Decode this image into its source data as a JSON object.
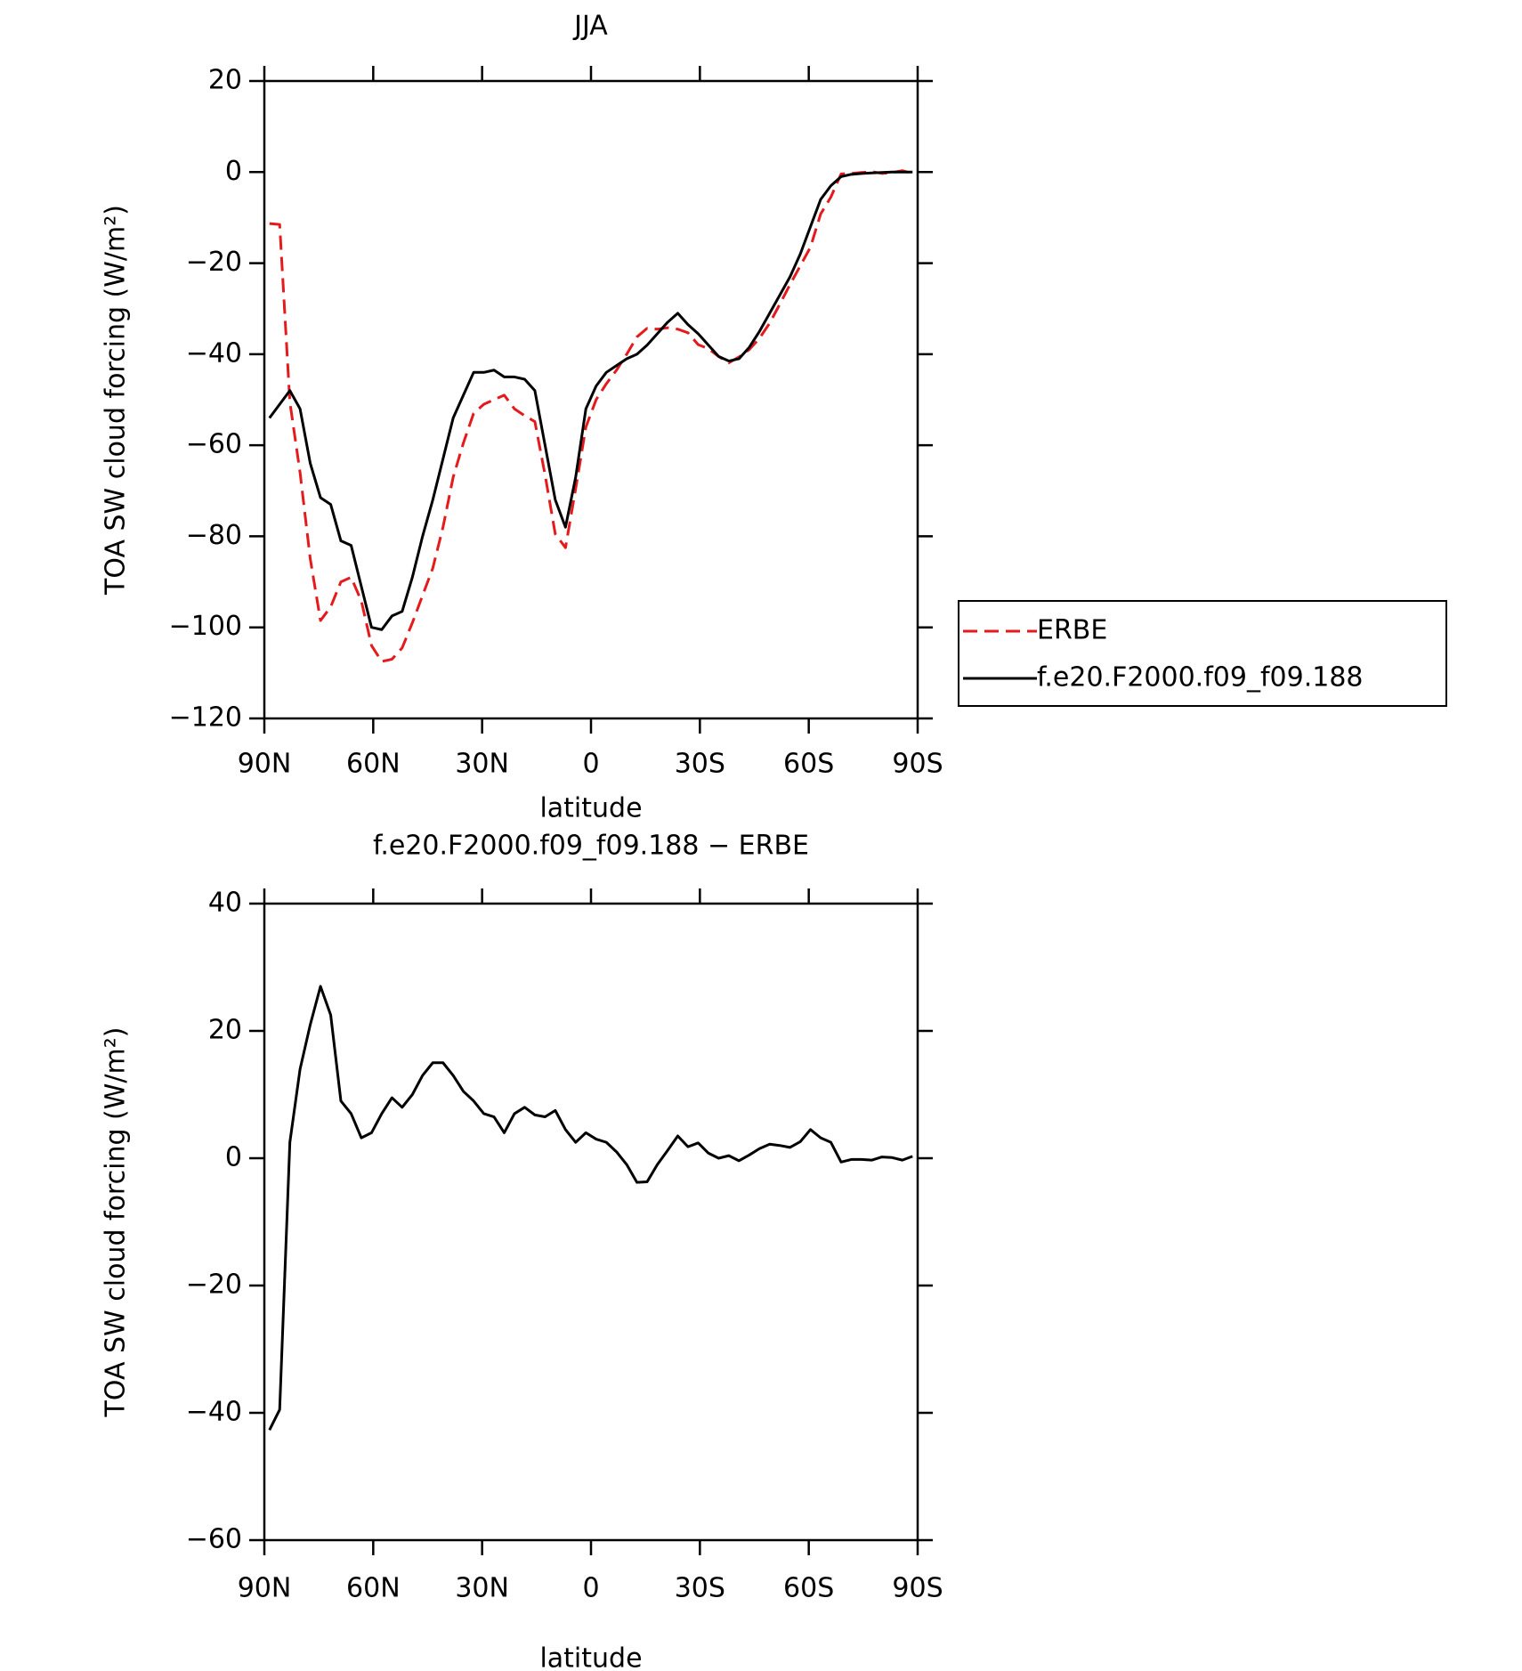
{
  "chart_data": [
    {
      "type": "line",
      "title": "JJA",
      "xlabel": "latitude",
      "ylabel": "TOA SW cloud forcing (W/m²)",
      "x": [
        88.59,
        85.78,
        82.97,
        80.16,
        77.34,
        74.53,
        71.72,
        68.91,
        66.09,
        63.28,
        60.47,
        57.66,
        54.84,
        52.03,
        49.22,
        46.41,
        43.59,
        40.78,
        37.97,
        35.16,
        32.34,
        29.53,
        26.72,
        23.91,
        21.09,
        18.28,
        15.47,
        12.66,
        9.84,
        7.03,
        4.22,
        1.41,
        -1.41,
        -4.22,
        -7.03,
        -9.84,
        -12.66,
        -15.47,
        -18.28,
        -21.09,
        -23.91,
        -26.72,
        -29.53,
        -32.34,
        -35.16,
        -37.97,
        -40.78,
        -43.59,
        -46.41,
        -49.22,
        -52.03,
        -54.84,
        -57.66,
        -60.47,
        -63.28,
        -66.09,
        -68.91,
        -71.72,
        -74.53,
        -77.34,
        -80.16,
        -82.97,
        -85.78,
        -88.59
      ],
      "series": [
        {
          "name": "ERBE",
          "color": "#e41a1c",
          "dash": true,
          "values": [
            -11.3,
            -11.5,
            -50.5,
            -66,
            -85,
            -98.5,
            -95.5,
            -90,
            -89,
            -94.2,
            -104,
            -107.5,
            -107,
            -104.5,
            -99,
            -93,
            -87,
            -78,
            -67,
            -59.5,
            -53,
            -51,
            -50,
            -49,
            -52,
            -53.5,
            -54.8,
            -66.5,
            -79.5,
            -82.5,
            -69.5,
            -56,
            -50,
            -46.5,
            -43.5,
            -40,
            -36.2,
            -34.3,
            -34.5,
            -34.2,
            -34.5,
            -35.3,
            -37.9,
            -38.8,
            -40.5,
            -41.9,
            -40.6,
            -39,
            -36.5,
            -33.2,
            -29,
            -24.7,
            -20.6,
            -16.5,
            -9.2,
            -5.5,
            -0.4,
            -0.3,
            -0.1,
            0.1,
            -0.3,
            -0.1,
            0.3,
            -0.3
          ]
        },
        {
          "name": "f.e20.F2000.f09_f09.188",
          "color": "#000000",
          "dash": false,
          "values": [
            -54,
            -51,
            -48,
            -52,
            -64,
            -71.5,
            -73,
            -81,
            -82,
            -91,
            -100,
            -100.5,
            -97.5,
            -96.5,
            -89,
            -80,
            -72,
            -63,
            -54,
            -49,
            -44,
            -44,
            -43.5,
            -45,
            -45,
            -45.5,
            -48,
            -60,
            -72,
            -78,
            -67,
            -52,
            -47,
            -44,
            -42.5,
            -41,
            -40,
            -38,
            -35.5,
            -33,
            -31,
            -33.5,
            -35.5,
            -38,
            -40.5,
            -41.5,
            -41,
            -38.5,
            -35,
            -31,
            -27,
            -23,
            -18,
            -12,
            -6,
            -3,
            -1,
            -0.5,
            -0.3,
            -0.2,
            -0.1,
            0,
            0,
            0
          ]
        }
      ],
      "xlim": [
        90,
        -90
      ],
      "ylim": [
        -120,
        20
      ],
      "xticks": [
        {
          "value": 90,
          "label": "90N"
        },
        {
          "value": 60,
          "label": "60N"
        },
        {
          "value": 30,
          "label": "30N"
        },
        0,
        {
          "value": -30,
          "label": "30S"
        },
        {
          "value": -60,
          "label": "60S"
        },
        {
          "value": -90,
          "label": "90S"
        }
      ],
      "yticks": [
        {
          "value": -120,
          "label": "−120"
        },
        {
          "value": -100,
          "label": "−100"
        },
        {
          "value": -80,
          "label": "−80"
        },
        {
          "value": -60,
          "label": "−60"
        },
        {
          "value": -40,
          "label": "−40"
        },
        {
          "value": -20,
          "label": "−20"
        },
        0,
        20
      ],
      "legend": "right"
    },
    {
      "type": "line",
      "title": "f.e20.F2000.f09_f09.188 − ERBE",
      "xlabel": "latitude",
      "ylabel": "TOA SW cloud forcing (W/m²)",
      "x": [
        88.59,
        85.78,
        82.97,
        80.16,
        77.34,
        74.53,
        71.72,
        68.91,
        66.09,
        63.28,
        60.47,
        57.66,
        54.84,
        52.03,
        49.22,
        46.41,
        43.59,
        40.78,
        37.97,
        35.16,
        32.34,
        29.53,
        26.72,
        23.91,
        21.09,
        18.28,
        15.47,
        12.66,
        9.84,
        7.03,
        4.22,
        1.41,
        -1.41,
        -4.22,
        -7.03,
        -9.84,
        -12.66,
        -15.47,
        -18.28,
        -21.09,
        -23.91,
        -26.72,
        -29.53,
        -32.34,
        -35.16,
        -37.97,
        -40.78,
        -43.59,
        -46.41,
        -49.22,
        -52.03,
        -54.84,
        -57.66,
        -60.47,
        -63.28,
        -66.09,
        -68.91,
        -71.72,
        -74.53,
        -77.34,
        -80.16,
        -82.97,
        -85.78,
        -88.59
      ],
      "series": [
        {
          "color": "#000000",
          "dash": false,
          "values": [
            -42.7,
            -39.5,
            2.5,
            14,
            21,
            27,
            22.5,
            9,
            7,
            3.2,
            4,
            7,
            9.5,
            8,
            10,
            13,
            15,
            15,
            13,
            10.5,
            9,
            7,
            6.5,
            4,
            7,
            8,
            6.8,
            6.5,
            7.5,
            4.5,
            2.5,
            4,
            3,
            2.5,
            1,
            -1,
            -3.8,
            -3.7,
            -1,
            1.2,
            3.5,
            1.8,
            2.4,
            0.8,
            0,
            0.4,
            -0.4,
            0.5,
            1.5,
            2.2,
            2,
            1.7,
            2.6,
            4.5,
            3.2,
            2.5,
            -0.6,
            -0.2,
            -0.2,
            -0.3,
            0.2,
            0.1,
            -0.3,
            0.3
          ]
        }
      ],
      "xlim": [
        90,
        -90
      ],
      "ylim": [
        -60,
        40
      ],
      "xticks": [
        {
          "value": 90,
          "label": "90N"
        },
        {
          "value": 60,
          "label": "60N"
        },
        {
          "value": 30,
          "label": "30N"
        },
        0,
        {
          "value": -30,
          "label": "30S"
        },
        {
          "value": -60,
          "label": "60S"
        },
        {
          "value": -90,
          "label": "90S"
        }
      ],
      "yticks": [
        {
          "value": -60,
          "label": "−60"
        },
        {
          "value": -40,
          "label": "−40"
        },
        {
          "value": -20,
          "label": "−20"
        },
        0,
        20,
        40
      ]
    }
  ]
}
